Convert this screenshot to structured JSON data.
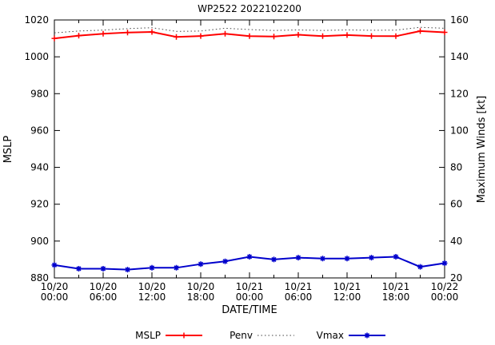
{
  "window": {
    "title": "WP2522 2022102200"
  },
  "chart_data": {
    "type": "line",
    "title": "WP2522 2022102200",
    "xlabel": "DATE/TIME",
    "ylabel_left": "MSLP",
    "ylabel_right": "Maximum Winds [kt]",
    "ylim_left": [
      880,
      1020
    ],
    "yticks_left": [
      880,
      900,
      920,
      940,
      960,
      980,
      1000,
      1020
    ],
    "ylim_right": [
      20,
      160
    ],
    "yticks_right": [
      20,
      40,
      60,
      80,
      100,
      120,
      140,
      160
    ],
    "xlim_hours": [
      0,
      48
    ],
    "x_major_ticks_hours": [
      0,
      6,
      12,
      18,
      24,
      30,
      36,
      42,
      48
    ],
    "x_minor_ticks_hours": [
      3,
      9,
      15,
      21,
      27,
      33,
      39,
      45
    ],
    "x_tick_labels": [
      {
        "date": "10/20",
        "time": "00:00"
      },
      {
        "date": "10/20",
        "time": "06:00"
      },
      {
        "date": "10/20",
        "time": "12:00"
      },
      {
        "date": "10/20",
        "time": "18:00"
      },
      {
        "date": "10/21",
        "time": "00:00"
      },
      {
        "date": "10/21",
        "time": "06:00"
      },
      {
        "date": "10/21",
        "time": "12:00"
      },
      {
        "date": "10/21",
        "time": "18:00"
      },
      {
        "date": "10/22",
        "time": "00:00"
      }
    ],
    "x_hours": [
      0,
      3,
      6,
      9,
      12,
      15,
      18,
      21,
      24,
      27,
      30,
      33,
      36,
      39,
      42,
      45,
      48
    ],
    "series": [
      {
        "name": "MSLP",
        "axis": "left",
        "color": "#ff0000",
        "line": "solid",
        "marker": "plus",
        "values": [
          1010,
          1011.5,
          1012.5,
          1013.2,
          1013.5,
          1010.8,
          1011.3,
          1012.5,
          1011.2,
          1011,
          1012,
          1011.2,
          1011.8,
          1011.3,
          1011.2,
          1014,
          1013.3
        ]
      },
      {
        "name": "Penv",
        "axis": "left",
        "color": "#444444",
        "line": "dotted",
        "marker": "none",
        "values": [
          1013,
          1014,
          1014.5,
          1015.3,
          1015.8,
          1013.8,
          1014,
          1015.5,
          1014.8,
          1014.3,
          1014.6,
          1014.3,
          1014.6,
          1014.4,
          1014.5,
          1016,
          1015.5
        ]
      },
      {
        "name": "Vmax",
        "axis": "right",
        "color": "#0000cc",
        "line": "solid",
        "marker": "asterisk",
        "values": [
          27,
          25,
          25,
          24.5,
          25.5,
          25.5,
          27.5,
          29,
          31.5,
          30,
          31,
          30.5,
          30.5,
          31,
          31.5,
          26,
          28
        ]
      }
    ],
    "legend": [
      "MSLP",
      "Penv",
      "Vmax"
    ],
    "legend_position": "bottom-center",
    "grid": false,
    "background": "#ffffff"
  }
}
